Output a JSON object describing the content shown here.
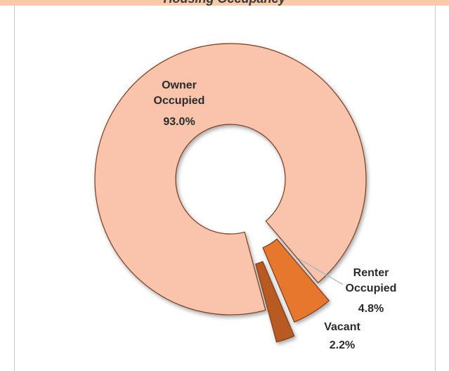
{
  "chart_data": {
    "type": "pie",
    "title": "Housing Occupancy",
    "categories": [
      "Owner Occupied",
      "Renter Occupied",
      "Vacant"
    ],
    "values": [
      93.0,
      4.8,
      2.2
    ],
    "value_labels": [
      "93.0%",
      "4.8%",
      "2.2%"
    ],
    "colors": [
      "#f9c4ab",
      "#e8772f",
      "#b95a22"
    ]
  }
}
